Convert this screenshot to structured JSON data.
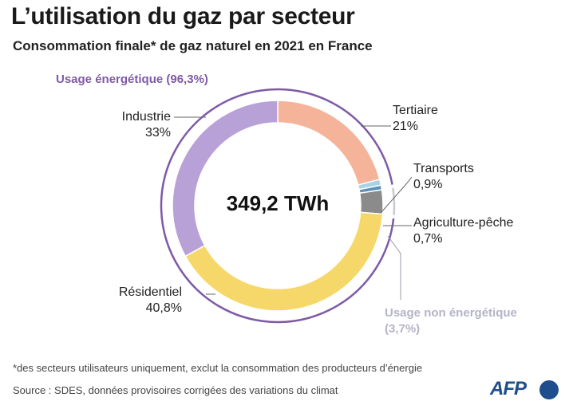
{
  "title": "L’utilisation du gaz par secteur",
  "subtitle": "Consommation finale* de gaz naturel en 2021 en France",
  "group_energy": "Usage énergétique (96,3%)",
  "group_nonenergy_line1": "Usage non énergétique",
  "group_nonenergy_line2": "(3,7%)",
  "total": "349,2 TWh",
  "labels": {
    "industrie": {
      "name": "Industrie",
      "pct": "33%"
    },
    "tertiaire": {
      "name": "Tertiaire",
      "pct": "21%"
    },
    "transports": {
      "name": "Transports",
      "pct": "0,9%"
    },
    "agriculture": {
      "name": "Agriculture-pêche",
      "pct": "0,7%"
    },
    "residentiel": {
      "name": "Résidentiel",
      "pct": "40,8%"
    }
  },
  "footnote": "*des secteurs utilisateurs uniquement, exclut la consommation des producteurs d’énergie",
  "source": "Source : SDES, données provisoires corrigées des variations du climat",
  "logo": "AFP",
  "chart_data": {
    "type": "pie",
    "donut": true,
    "unit": "%",
    "total": "349,2 TWh",
    "slices": [
      {
        "name": "Tertiaire",
        "value": 21,
        "color": "#f5b49a"
      },
      {
        "name": "Transports",
        "value": 0.9,
        "color": "#a9d2e6"
      },
      {
        "name": "Agriculture-pêche",
        "value": 0.7,
        "color": "#5c8fb8"
      },
      {
        "name": "Usage non énergétique",
        "value": 3.7,
        "color": "#8b8b8b"
      },
      {
        "name": "Résidentiel",
        "value": 40.8,
        "color": "#f6d86a"
      },
      {
        "name": "Industrie",
        "value": 33,
        "color": "#b8a1d6"
      }
    ],
    "groups": [
      {
        "name": "Usage énergétique",
        "value": 96.3,
        "color": "#7e5aa6"
      },
      {
        "name": "Usage non énergétique",
        "value": 3.7,
        "color": "#c8c8d4"
      }
    ]
  }
}
